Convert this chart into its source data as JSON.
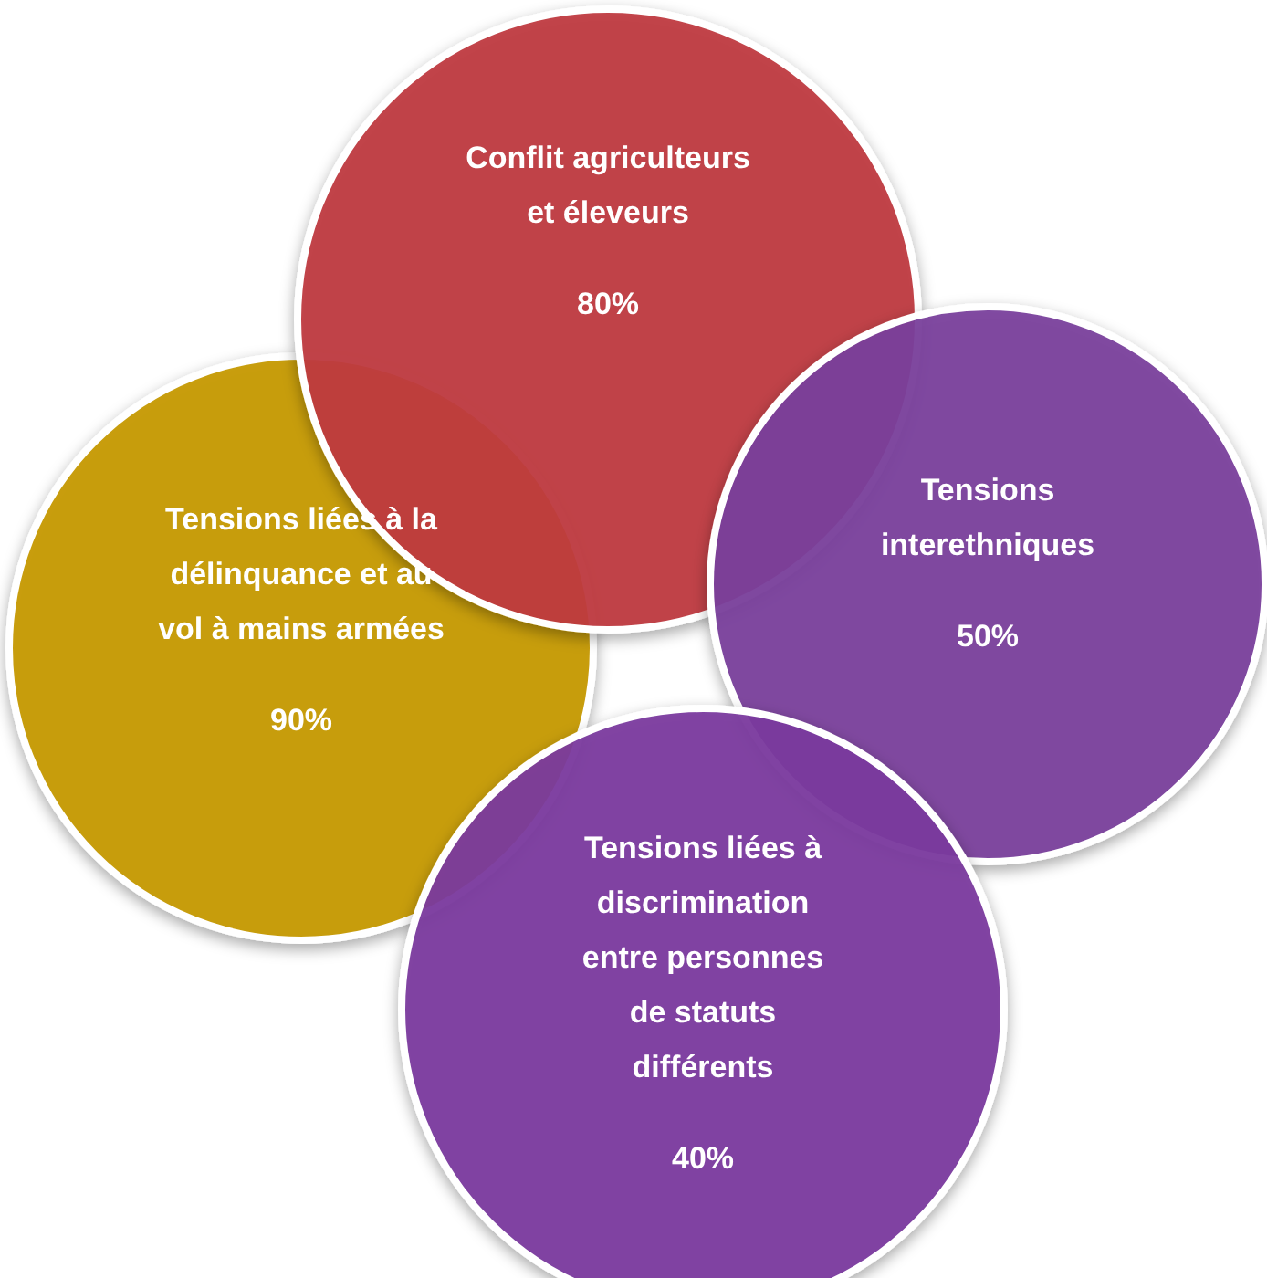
{
  "chart_data": {
    "type": "other",
    "categories": [
      "Conflit agriculteurs et éleveurs",
      "Tensions interethniques",
      "Tensions liées à la délinquance et au vol à mains armées",
      "Tensions liées à discrimination entre personnes de statuts différents"
    ],
    "values": [
      80,
      50,
      90,
      40
    ],
    "value_labels": [
      "80%",
      "50%",
      "90%",
      "40%"
    ],
    "colors": [
      "#c0393f",
      "#7a3f9c",
      "#c79a00",
      "#7b3a9f"
    ]
  }
}
